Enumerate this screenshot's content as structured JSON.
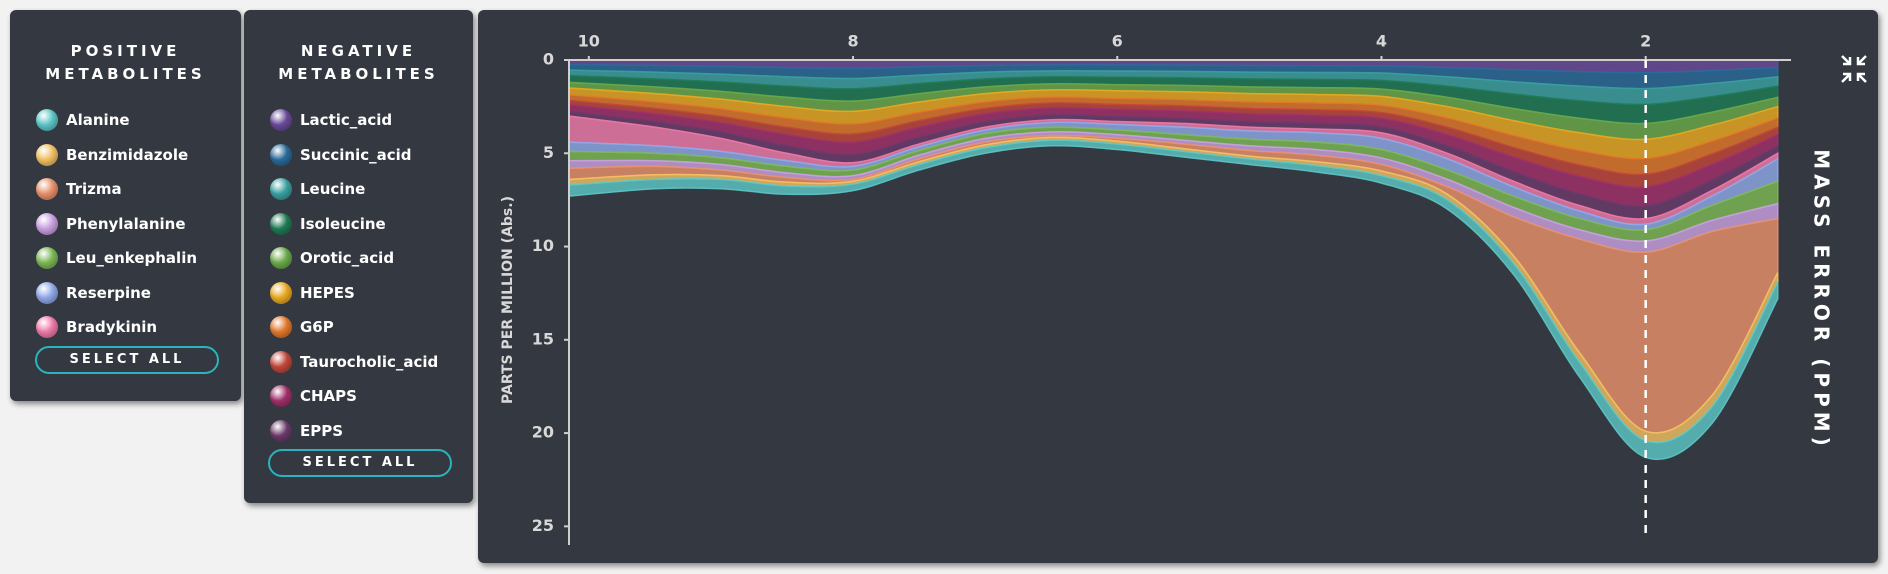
{
  "panels": {
    "positive": {
      "title": "POSITIVE METABOLITES",
      "button": "SELECT ALL"
    },
    "negative": {
      "title": "NEGATIVE METABOLITES",
      "button": "SELECT ALL"
    }
  },
  "chart_data": {
    "type": "area",
    "stacked": true,
    "title": "MASS ERROR (PPM)",
    "ylabel": "PARTS PER MILLION (Abs.)",
    "x": [
      10.15,
      9.5,
      9,
      8.5,
      8,
      7.5,
      7,
      6.5,
      6,
      5.5,
      5,
      4.5,
      4,
      3.5,
      3,
      2.5,
      2,
      1.5,
      1.0
    ],
    "xlim": [
      10.15,
      0.9
    ],
    "xticks": [
      10,
      8,
      6,
      4,
      2
    ],
    "ylim": [
      0,
      26
    ],
    "yticks": [
      0,
      5,
      10,
      15,
      20,
      25
    ],
    "y_inverted": true,
    "marker_x": 2,
    "series": [
      {
        "name": "Alanine",
        "group": "positive",
        "color": "#5cc6c6",
        "values": [
          0.6,
          0.5,
          0.5,
          0.45,
          0.35,
          0.3,
          0.3,
          0.3,
          0.3,
          0.3,
          0.3,
          0.35,
          0.4,
          0.5,
          0.6,
          0.8,
          0.9,
          0.9,
          0.9
        ]
      },
      {
        "name": "Benzimidazole",
        "group": "positive",
        "color": "#f2c063",
        "values": [
          0.3,
          0.25,
          0.2,
          0.2,
          0.15,
          0.15,
          0.15,
          0.15,
          0.15,
          0.15,
          0.15,
          0.2,
          0.25,
          0.3,
          0.4,
          0.5,
          0.5,
          0.6,
          0.5
        ]
      },
      {
        "name": "Trizma",
        "group": "positive",
        "color": "#e8906a",
        "values": [
          0.6,
          0.45,
          0.3,
          0.25,
          0.1,
          0.15,
          0.15,
          0.1,
          0.15,
          0.25,
          0.3,
          0.35,
          0.35,
          0.4,
          2.1,
          6.1,
          9.6,
          8.8,
          2.9
        ]
      },
      {
        "name": "Phenylalanine",
        "group": "positive",
        "color": "#c9a0e0",
        "values": [
          0.4,
          0.3,
          0.3,
          0.25,
          0.2,
          0.2,
          0.2,
          0.2,
          0.2,
          0.2,
          0.25,
          0.3,
          0.35,
          0.4,
          0.5,
          0.5,
          0.6,
          0.6,
          0.8
        ]
      },
      {
        "name": "Leu_enkephalin",
        "group": "positive",
        "color": "#7cb856",
        "values": [
          0.5,
          0.4,
          0.35,
          0.35,
          0.3,
          0.25,
          0.25,
          0.25,
          0.25,
          0.3,
          0.35,
          0.4,
          0.45,
          0.5,
          0.6,
          0.6,
          0.6,
          0.8,
          1.2
        ]
      },
      {
        "name": "Reserpine",
        "group": "positive",
        "color": "#8fa8e8",
        "values": [
          0.5,
          0.4,
          0.35,
          0.3,
          0.2,
          0.2,
          0.2,
          0.25,
          0.3,
          0.4,
          0.45,
          0.5,
          0.6,
          0.6,
          0.5,
          0.4,
          0.3,
          0.5,
          1.2
        ]
      },
      {
        "name": "Bradykinin",
        "group": "positive",
        "color": "#ee7aa8",
        "values": [
          1.4,
          1.0,
          0.7,
          0.4,
          0.2,
          0.15,
          0.15,
          0.15,
          0.15,
          0.2,
          0.2,
          0.2,
          0.3,
          0.3,
          0.3,
          0.3,
          0.3,
          0.3,
          0.3
        ]
      },
      {
        "name": "Lactic_acid",
        "group": "negative",
        "color": "#6a4a9a",
        "values": [
          0.24,
          0.29,
          0.34,
          0.4,
          0.44,
          0.36,
          0.29,
          0.26,
          0.26,
          0.27,
          0.29,
          0.3,
          0.31,
          0.4,
          0.52,
          0.62,
          0.68,
          0.56,
          0.4
        ]
      },
      {
        "name": "Succinic_acid",
        "group": "negative",
        "color": "#2a6a9a",
        "values": [
          0.3,
          0.36,
          0.42,
          0.5,
          0.55,
          0.45,
          0.36,
          0.32,
          0.33,
          0.34,
          0.36,
          0.37,
          0.39,
          0.5,
          0.65,
          0.78,
          0.85,
          0.7,
          0.5
        ]
      },
      {
        "name": "Leucine",
        "group": "negative",
        "color": "#3aa0a0",
        "values": [
          0.3,
          0.36,
          0.42,
          0.5,
          0.55,
          0.45,
          0.36,
          0.32,
          0.33,
          0.34,
          0.36,
          0.37,
          0.39,
          0.5,
          0.65,
          0.78,
          0.85,
          0.7,
          0.5
        ]
      },
      {
        "name": "Isoleucine",
        "group": "negative",
        "color": "#1f7a55",
        "values": [
          0.36,
          0.43,
          0.5,
          0.6,
          0.66,
          0.54,
          0.43,
          0.38,
          0.4,
          0.41,
          0.43,
          0.44,
          0.47,
          0.6,
          0.78,
          0.94,
          1.02,
          0.84,
          0.6
        ]
      },
      {
        "name": "Orotic_acid",
        "group": "negative",
        "color": "#6aaa4a",
        "values": [
          0.3,
          0.36,
          0.42,
          0.5,
          0.55,
          0.45,
          0.36,
          0.32,
          0.33,
          0.34,
          0.36,
          0.37,
          0.39,
          0.5,
          0.65,
          0.78,
          0.85,
          0.7,
          0.5
        ]
      },
      {
        "name": "HEPES",
        "group": "negative",
        "color": "#e8a820",
        "values": [
          0.36,
          0.43,
          0.5,
          0.6,
          0.66,
          0.54,
          0.43,
          0.38,
          0.4,
          0.41,
          0.43,
          0.44,
          0.47,
          0.6,
          0.78,
          0.94,
          1.02,
          0.84,
          0.6
        ]
      },
      {
        "name": "G6P",
        "group": "negative",
        "color": "#e0782a",
        "values": [
          0.3,
          0.36,
          0.42,
          0.5,
          0.55,
          0.45,
          0.36,
          0.32,
          0.33,
          0.34,
          0.36,
          0.37,
          0.39,
          0.5,
          0.65,
          0.78,
          0.85,
          0.7,
          0.5
        ]
      },
      {
        "name": "Taurocholic_acid",
        "group": "negative",
        "color": "#c0463a",
        "values": [
          0.24,
          0.29,
          0.34,
          0.4,
          0.44,
          0.36,
          0.29,
          0.26,
          0.26,
          0.27,
          0.29,
          0.3,
          0.31,
          0.4,
          0.52,
          0.62,
          0.68,
          0.56,
          0.4
        ]
      },
      {
        "name": "CHAPS",
        "group": "negative",
        "color": "#a0306a",
        "values": [
          0.36,
          0.43,
          0.5,
          0.6,
          0.66,
          0.54,
          0.43,
          0.38,
          0.4,
          0.41,
          0.43,
          0.44,
          0.47,
          0.6,
          0.78,
          0.94,
          1.02,
          0.84,
          0.6
        ]
      },
      {
        "name": "EPPS",
        "group": "negative",
        "color": "#6a3a6a",
        "values": [
          0.24,
          0.29,
          0.34,
          0.4,
          0.44,
          0.36,
          0.29,
          0.26,
          0.26,
          0.27,
          0.29,
          0.3,
          0.31,
          0.4,
          0.52,
          0.62,
          0.68,
          0.56,
          0.4
        ]
      }
    ]
  }
}
